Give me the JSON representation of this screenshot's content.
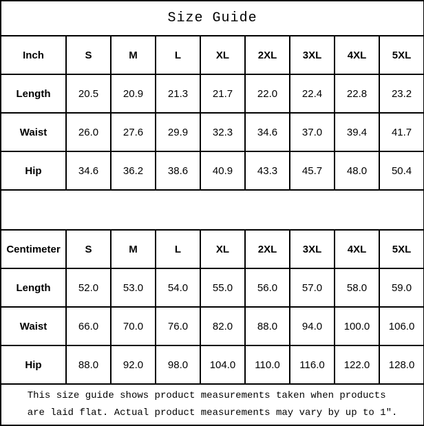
{
  "title": "Size Guide",
  "colors": {
    "border": "#000000",
    "text": "#000000",
    "background": "#ffffff"
  },
  "inch_table": {
    "unit_label": "Inch",
    "sizes": [
      "S",
      "M",
      "L",
      "XL",
      "2XL",
      "3XL",
      "4XL",
      "5XL"
    ],
    "rows": [
      {
        "label": "Length",
        "values": [
          "20.5",
          "20.9",
          "21.3",
          "21.7",
          "22.0",
          "22.4",
          "22.8",
          "23.2"
        ]
      },
      {
        "label": "Waist",
        "values": [
          "26.0",
          "27.6",
          "29.9",
          "32.3",
          "34.6",
          "37.0",
          "39.4",
          "41.7"
        ]
      },
      {
        "label": "Hip",
        "values": [
          "34.6",
          "36.2",
          "38.6",
          "40.9",
          "43.3",
          "45.7",
          "48.0",
          "50.4"
        ]
      }
    ]
  },
  "cm_table": {
    "unit_label": "Centimeter",
    "sizes": [
      "S",
      "M",
      "L",
      "XL",
      "2XL",
      "3XL",
      "4XL",
      "5XL"
    ],
    "rows": [
      {
        "label": "Length",
        "values": [
          "52.0",
          "53.0",
          "54.0",
          "55.0",
          "56.0",
          "57.0",
          "58.0",
          "59.0"
        ]
      },
      {
        "label": "Waist",
        "values": [
          "66.0",
          "70.0",
          "76.0",
          "82.0",
          "88.0",
          "94.0",
          "100.0",
          "106.0"
        ]
      },
      {
        "label": "Hip",
        "values": [
          "88.0",
          "92.0",
          "98.0",
          "104.0",
          "110.0",
          "116.0",
          "122.0",
          "128.0"
        ]
      }
    ]
  },
  "footnote": {
    "line1": "This size guide shows product measurements taken when products",
    "line2": "are laid flat. Actual product measurements may vary by up to 1″."
  },
  "chart_data": [
    {
      "type": "table",
      "title": "Size Guide",
      "unit": "Inch",
      "columns": [
        "Inch",
        "S",
        "M",
        "L",
        "XL",
        "2XL",
        "3XL",
        "4XL",
        "5XL"
      ],
      "rows": [
        [
          "Length",
          20.5,
          20.9,
          21.3,
          21.7,
          22.0,
          22.4,
          22.8,
          23.2
        ],
        [
          "Waist",
          26.0,
          27.6,
          29.9,
          32.3,
          34.6,
          37.0,
          39.4,
          41.7
        ],
        [
          "Hip",
          34.6,
          36.2,
          38.6,
          40.9,
          43.3,
          45.7,
          48.0,
          50.4
        ]
      ]
    },
    {
      "type": "table",
      "title": "Size Guide",
      "unit": "Centimeter",
      "columns": [
        "Centimeter",
        "S",
        "M",
        "L",
        "XL",
        "2XL",
        "3XL",
        "4XL",
        "5XL"
      ],
      "rows": [
        [
          "Length",
          52.0,
          53.0,
          54.0,
          55.0,
          56.0,
          57.0,
          58.0,
          59.0
        ],
        [
          "Waist",
          66.0,
          70.0,
          76.0,
          82.0,
          88.0,
          94.0,
          100.0,
          106.0
        ],
        [
          "Hip",
          88.0,
          92.0,
          98.0,
          104.0,
          110.0,
          116.0,
          122.0,
          128.0
        ]
      ]
    }
  ]
}
